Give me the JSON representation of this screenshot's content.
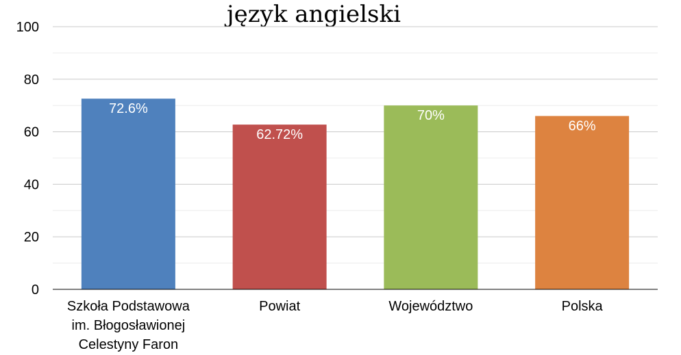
{
  "chart_data": {
    "type": "bar",
    "title": "język angielski",
    "categories": [
      [
        "Szkoła Podstawowa",
        "im. Błogosławionej",
        "Celestyny Faron"
      ],
      [
        "Powiat"
      ],
      [
        "Województwo"
      ],
      [
        "Polska"
      ]
    ],
    "values": [
      72.6,
      62.72,
      70,
      66
    ],
    "value_labels": [
      "72.6%",
      "62.72%",
      "70%",
      "66%"
    ],
    "colors": [
      "#4f81bd",
      "#c0504d",
      "#9bbb59",
      "#dd8340"
    ],
    "ylim": [
      0,
      100
    ],
    "yticks": [
      0,
      20,
      40,
      60,
      80,
      100
    ],
    "grid": true,
    "legend": "none"
  }
}
